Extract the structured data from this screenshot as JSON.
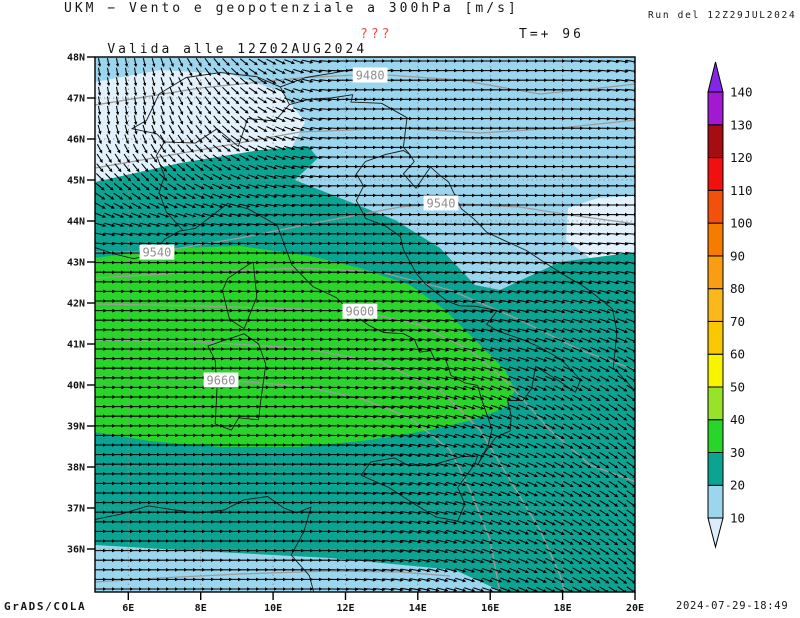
{
  "header": {
    "title": "UKM − Vento e geopotenziale a 300hPa [m/s]",
    "run_label": "Run del 12Z29JUL2024",
    "valid_label": "Valida alle 12Z02AUG2024",
    "missing_marker": "???",
    "lead_time_label": "T=+ 96"
  },
  "footer": {
    "credit": "GrADS/COLA",
    "timestamp": "2024-07-29-18:49"
  },
  "chart_data": {
    "type": "heatmap",
    "title": "UKM − Vento e geopotenziale a 300hPa [m/s]",
    "subtitle": "Valida alle 12Z02AUG2024 ??? T=+ 96",
    "shaded_variable": "wind speed at 300hPa (m/s), filled bands of 10 m/s",
    "contour_variable": "geopotential height at 300hPa (m)",
    "vector_variable": "wind at 300hPa shown as dense black arrows",
    "x_axis": {
      "ticks": [
        "6E",
        "8E",
        "10E",
        "12E",
        "14E",
        "16E",
        "18E",
        "20E"
      ],
      "range_lon": [
        5.08,
        20.0
      ]
    },
    "y_axis": {
      "ticks": [
        "48N",
        "47N",
        "46N",
        "45N",
        "44N",
        "43N",
        "42N",
        "41N",
        "40N",
        "39N",
        "38N",
        "37N",
        "36N"
      ],
      "range_lat": [
        34.95,
        48.0
      ]
    },
    "grid": {
      "style": "dotted",
      "lat_step_deg": 1,
      "lon_step_deg": 2
    },
    "legend": {
      "position": "right",
      "levels": [
        10,
        20,
        30,
        40,
        50,
        60,
        70,
        80,
        90,
        100,
        110,
        120,
        130,
        140
      ],
      "band_colors": [
        "#9cd6ee",
        "#0ba493",
        "#2ad52a",
        "#98e32a",
        "#f8f400",
        "#f9c801",
        "#fbb71c",
        "#f99d13",
        "#f67c00",
        "#f3500b",
        "#f01010",
        "#a60d12",
        "#a11ad1"
      ],
      "below_color": "#dcecfa",
      "above_color": "#8426e8"
    },
    "contour_labels": [
      {
        "value": "9480",
        "lon": 12.68,
        "lat": 47.56
      },
      {
        "value": "9540",
        "lon": 14.64,
        "lat": 44.44
      },
      {
        "value": "9540",
        "lon": 6.79,
        "lat": 43.24
      },
      {
        "value": "9600",
        "lon": 12.4,
        "lat": 41.8
      },
      {
        "value": "9660",
        "lon": 8.56,
        "lat": 40.12
      }
    ],
    "shaded_regions": [
      {
        "range_ms": "<10",
        "where": "northwest corner over France/Alps (~45.5-48N, 5-12.5E) and small area ~18-20E, 44-45N"
      },
      {
        "range_ms": "10-20",
        "where": "background light blue over most of the domain"
      },
      {
        "range_ms": "20-30",
        "where": "band from the west at 42-45N with tongue to ~12.5E, plus broad area over southern Italy, Ionian Sea and southeast"
      },
      {
        "range_ms": "30-40",
        "where": "jet core ~39-42.3N from the west edge to ~16.6E (Tyrrhenian / southern Italy)"
      }
    ],
    "wind_field": {
      "flow": "north-northwesterly over the Alps turning into a strong westerly jet across 39-43N, veering east-southeast over the Ionian Sea and Balkans"
    }
  }
}
